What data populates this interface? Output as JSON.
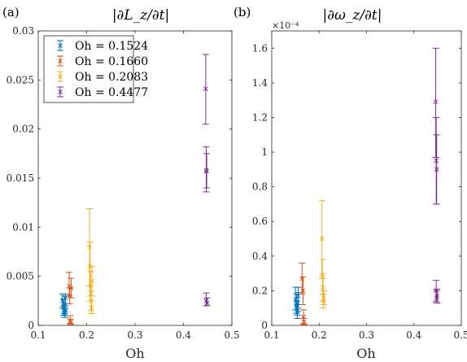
{
  "colors": [
    "#0072BD",
    "#D95319",
    "#EDB120",
    "#7E2F8E"
  ],
  "legend": [
    "Oh = 0.1524",
    "Oh = 0.1660",
    "Oh = 0.2083",
    "Oh = 0.4477"
  ],
  "chart_data": [
    {
      "type": "scatter",
      "panel_label": "(a)",
      "title": "|∂L_z/∂t|",
      "xlabel": "Oh",
      "ylabel": "",
      "xlim": [
        0.1,
        0.5
      ],
      "ylim": [
        0,
        0.03
      ],
      "xticks": [
        "0.1",
        "0.2",
        "0.3",
        "0.4",
        "0.5"
      ],
      "yticks": [
        "0",
        "0.005",
        "0.01",
        "0.015",
        "0.02",
        "0.025",
        "0.03"
      ],
      "exponent_label": "",
      "legend_position": "top-left",
      "series": [
        {
          "name": "Oh = 0.1524",
          "points": [
            {
              "x": 0.15,
              "y": 0.0025,
              "lo": 0.0018,
              "hi": 0.0032
            },
            {
              "x": 0.152,
              "y": 0.0018,
              "lo": 0.001,
              "hi": 0.0027
            },
            {
              "x": 0.153,
              "y": 0.0015,
              "lo": 0.001,
              "hi": 0.002
            },
            {
              "x": 0.154,
              "y": 0.0022,
              "lo": 0.0012,
              "hi": 0.003
            },
            {
              "x": 0.155,
              "y": 0.0013,
              "lo": 0.0008,
              "hi": 0.0018
            },
            {
              "x": 0.156,
              "y": 0.0028,
              "lo": 0.002,
              "hi": 0.0032
            },
            {
              "x": 0.157,
              "y": 0.0015,
              "lo": 0.001,
              "hi": 0.0022
            }
          ]
        },
        {
          "name": "Oh = 0.1660",
          "points": [
            {
              "x": 0.164,
              "y": 0.004,
              "lo": 0.003,
              "hi": 0.0054
            },
            {
              "x": 0.165,
              "y": 0.003,
              "lo": 0.0022,
              "hi": 0.0038
            },
            {
              "x": 0.166,
              "y": 0.0005,
              "lo": 0.0002,
              "hi": 0.001
            },
            {
              "x": 0.167,
              "y": 0.0003,
              "lo": 0.0001,
              "hi": 0.0006
            },
            {
              "x": 0.168,
              "y": 0.0038,
              "lo": 0.0028,
              "hi": 0.0048
            }
          ]
        },
        {
          "name": "Oh = 0.2083",
          "points": [
            {
              "x": 0.206,
              "y": 0.008,
              "lo": 0.004,
              "hi": 0.0119
            },
            {
              "x": 0.207,
              "y": 0.006,
              "lo": 0.003,
              "hi": 0.0085
            },
            {
              "x": 0.208,
              "y": 0.004,
              "lo": 0.0025,
              "hi": 0.0055
            },
            {
              "x": 0.209,
              "y": 0.0025,
              "lo": 0.0015,
              "hi": 0.0035
            },
            {
              "x": 0.21,
              "y": 0.0018,
              "lo": 0.0012,
              "hi": 0.0025
            },
            {
              "x": 0.211,
              "y": 0.0045,
              "lo": 0.003,
              "hi": 0.006
            }
          ]
        },
        {
          "name": "Oh = 0.4477",
          "points": [
            {
              "x": 0.446,
              "y": 0.0241,
              "lo": 0.0205,
              "hi": 0.0276
            },
            {
              "x": 0.447,
              "y": 0.0158,
              "lo": 0.0136,
              "hi": 0.0182
            },
            {
              "x": 0.448,
              "y": 0.0157,
              "lo": 0.014,
              "hi": 0.0175
            },
            {
              "x": 0.447,
              "y": 0.0025,
              "lo": 0.002,
              "hi": 0.0033
            },
            {
              "x": 0.449,
              "y": 0.0023,
              "lo": 0.002,
              "hi": 0.0028
            }
          ]
        }
      ]
    },
    {
      "type": "scatter",
      "panel_label": "(b)",
      "title": "|∂ω_z/∂t|",
      "xlabel": "Oh",
      "ylabel": "",
      "xlim": [
        0.1,
        0.5
      ],
      "ylim": [
        0,
        1.7
      ],
      "xticks": [
        "0.1",
        "0.2",
        "0.3",
        "0.4",
        "0.5"
      ],
      "yticks": [
        "0",
        "0.2",
        "0.4",
        "0.6",
        "0.8",
        "1",
        "1.2",
        "1.4",
        "1.6"
      ],
      "exponent_label": "×10⁻⁴",
      "legend_position": "",
      "series": [
        {
          "name": "Oh = 0.1524",
          "points": [
            {
              "x": 0.15,
              "y": 0.15,
              "lo": 0.09,
              "hi": 0.22
            },
            {
              "x": 0.152,
              "y": 0.12,
              "lo": 0.07,
              "hi": 0.18
            },
            {
              "x": 0.153,
              "y": 0.1,
              "lo": 0.06,
              "hi": 0.14
            },
            {
              "x": 0.154,
              "y": 0.08,
              "lo": 0.04,
              "hi": 0.12
            },
            {
              "x": 0.155,
              "y": 0.13,
              "lo": 0.08,
              "hi": 0.19
            },
            {
              "x": 0.156,
              "y": 0.17,
              "lo": 0.1,
              "hi": 0.22
            }
          ]
        },
        {
          "name": "Oh = 0.1660",
          "points": [
            {
              "x": 0.164,
              "y": 0.27,
              "lo": 0.18,
              "hi": 0.36
            },
            {
              "x": 0.166,
              "y": 0.2,
              "lo": 0.12,
              "hi": 0.28
            },
            {
              "x": 0.167,
              "y": 0.05,
              "lo": 0.01,
              "hi": 0.09
            },
            {
              "x": 0.168,
              "y": 0.02,
              "lo": 0.005,
              "hi": 0.04
            }
          ]
        },
        {
          "name": "Oh = 0.2083",
          "points": [
            {
              "x": 0.206,
              "y": 0.5,
              "lo": 0.27,
              "hi": 0.72
            },
            {
              "x": 0.207,
              "y": 0.28,
              "lo": 0.18,
              "hi": 0.38
            },
            {
              "x": 0.208,
              "y": 0.22,
              "lo": 0.14,
              "hi": 0.3
            },
            {
              "x": 0.209,
              "y": 0.14,
              "lo": 0.1,
              "hi": 0.18
            },
            {
              "x": 0.21,
              "y": 0.16,
              "lo": 0.12,
              "hi": 0.2
            }
          ]
        },
        {
          "name": "Oh = 0.4477",
          "points": [
            {
              "x": 0.446,
              "y": 1.29,
              "lo": 0.97,
              "hi": 1.6
            },
            {
              "x": 0.447,
              "y": 0.95,
              "lo": 0.7,
              "hi": 1.2
            },
            {
              "x": 0.448,
              "y": 0.9,
              "lo": 0.7,
              "hi": 1.1
            },
            {
              "x": 0.447,
              "y": 0.2,
              "lo": 0.14,
              "hi": 0.26
            },
            {
              "x": 0.449,
              "y": 0.17,
              "lo": 0.13,
              "hi": 0.21
            },
            {
              "x": 0.448,
              "y": 0.16,
              "lo": 0.13,
              "hi": 0.2
            }
          ]
        }
      ]
    }
  ]
}
